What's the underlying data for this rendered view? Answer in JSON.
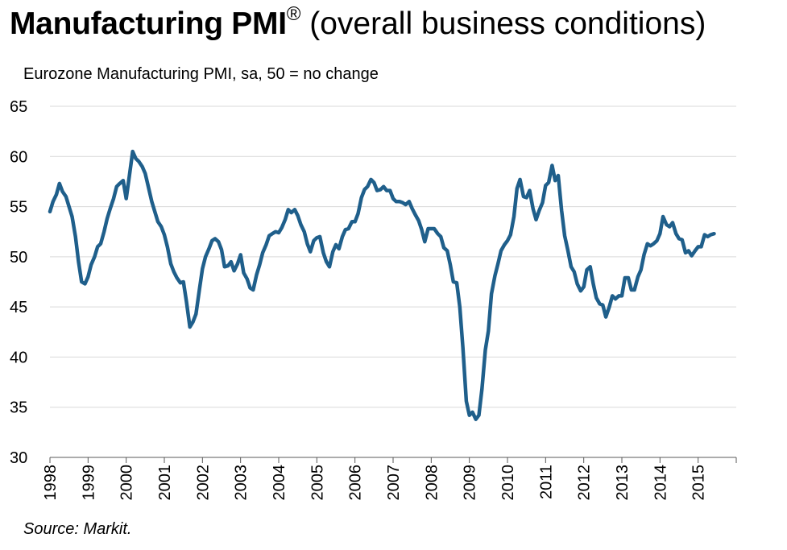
{
  "header": {
    "title_bold": "Manufacturing PMI",
    "title_mark": "®",
    "title_rest": " (overall business conditions)",
    "subtitle": "Eurozone Manufacturing PMI, sa, 50 = no change"
  },
  "footer": {
    "source": "Source: Markit."
  },
  "colors": {
    "series": "#1f5f8b",
    "grid": "#d9d9d9",
    "axis": "#595959"
  },
  "chart_data": {
    "type": "line",
    "title": "Manufacturing PMI® (overall business conditions)",
    "subtitle": "Eurozone Manufacturing PMI, sa, 50 = no change",
    "xlabel": "",
    "ylabel": "",
    "ylim": [
      30,
      65
    ],
    "yticks": [
      30,
      35,
      40,
      45,
      50,
      55,
      60,
      65
    ],
    "xlim": [
      1998,
      2016.0
    ],
    "xticks": [
      "1998",
      "1999",
      "2000",
      "2001",
      "2002",
      "2003",
      "2004",
      "2005",
      "2006",
      "2007",
      "2008",
      "2009",
      "2010",
      "2011",
      "2012",
      "2013",
      "2014",
      "2015"
    ],
    "grid": "horizontal",
    "legend": "none",
    "series": [
      {
        "x": [
          1998.0,
          1998.08,
          1998.17,
          1998.25,
          1998.33,
          1998.42,
          1998.5,
          1998.58,
          1998.67,
          1998.75,
          1998.83,
          1998.92,
          1999.0,
          1999.08,
          1999.17,
          1999.25,
          1999.33,
          1999.42,
          1999.5,
          1999.58,
          1999.67,
          1999.75,
          1999.83,
          1999.92,
          2000.0,
          2000.08,
          2000.17,
          2000.25,
          2000.33,
          2000.42,
          2000.5,
          2000.58,
          2000.67,
          2000.75,
          2000.83,
          2000.92,
          2001.0,
          2001.08,
          2001.17,
          2001.25,
          2001.33,
          2001.42,
          2001.5,
          2001.58,
          2001.67,
          2001.75,
          2001.83,
          2001.92,
          2002.0,
          2002.08,
          2002.17,
          2002.25,
          2002.33,
          2002.42,
          2002.5,
          2002.58,
          2002.67,
          2002.75,
          2002.83,
          2002.92,
          2003.0,
          2003.08,
          2003.17,
          2003.25,
          2003.33,
          2003.42,
          2003.5,
          2003.58,
          2003.67,
          2003.75,
          2003.83,
          2003.92,
          2004.0,
          2004.08,
          2004.17,
          2004.25,
          2004.33,
          2004.42,
          2004.5,
          2004.58,
          2004.67,
          2004.75,
          2004.83,
          2004.92,
          2005.0,
          2005.08,
          2005.17,
          2005.25,
          2005.33,
          2005.42,
          2005.5,
          2005.58,
          2005.67,
          2005.75,
          2005.83,
          2005.92,
          2006.0,
          2006.08,
          2006.17,
          2006.25,
          2006.33,
          2006.42,
          2006.5,
          2006.58,
          2006.67,
          2006.75,
          2006.83,
          2006.92,
          2007.0,
          2007.08,
          2007.17,
          2007.25,
          2007.33,
          2007.42,
          2007.5,
          2007.58,
          2007.67,
          2007.75,
          2007.83,
          2007.92,
          2008.0,
          2008.08,
          2008.17,
          2008.25,
          2008.33,
          2008.42,
          2008.5,
          2008.58,
          2008.67,
          2008.75,
          2008.83,
          2008.92,
          2009.0,
          2009.08,
          2009.17,
          2009.25,
          2009.33,
          2009.42,
          2009.5,
          2009.58,
          2009.67,
          2009.75,
          2009.83,
          2009.92,
          2010.0,
          2010.08,
          2010.17,
          2010.25,
          2010.33,
          2010.42,
          2010.5,
          2010.58,
          2010.67,
          2010.75,
          2010.83,
          2010.92,
          2011.0,
          2011.08,
          2011.17,
          2011.25,
          2011.33,
          2011.42,
          2011.5,
          2011.58,
          2011.67,
          2011.75,
          2011.83,
          2011.92,
          2012.0,
          2012.08,
          2012.17,
          2012.25,
          2012.33,
          2012.42,
          2012.5,
          2012.58,
          2012.67,
          2012.75,
          2012.83,
          2012.92,
          2013.0,
          2013.08,
          2013.17,
          2013.25,
          2013.33,
          2013.42,
          2013.5,
          2013.58,
          2013.67,
          2013.75,
          2013.83,
          2013.92,
          2014.0,
          2014.08,
          2014.17,
          2014.25,
          2014.33,
          2014.42,
          2014.5,
          2014.58,
          2014.67,
          2014.75,
          2014.83,
          2014.92,
          2015.0,
          2015.08,
          2015.17,
          2015.25,
          2015.33,
          2015.42
        ],
        "y": [
          54.5,
          55.5,
          56.2,
          57.3,
          56.5,
          56.0,
          55.0,
          54.0,
          52.0,
          49.5,
          47.5,
          47.3,
          48.0,
          49.2,
          50.0,
          51.0,
          51.3,
          52.5,
          53.8,
          54.8,
          55.8,
          57.0,
          57.3,
          57.6,
          55.8,
          58.0,
          60.5,
          59.8,
          59.5,
          59.0,
          58.3,
          57.0,
          55.5,
          54.5,
          53.5,
          53.0,
          52.2,
          51.0,
          49.3,
          48.5,
          47.9,
          47.4,
          47.5,
          45.5,
          43.0,
          43.5,
          44.3,
          46.7,
          48.8,
          50.0,
          50.8,
          51.6,
          51.8,
          51.5,
          50.7,
          49.0,
          49.1,
          49.5,
          48.6,
          49.3,
          50.2,
          48.4,
          47.8,
          46.9,
          46.7,
          48.2,
          49.2,
          50.4,
          51.2,
          52.1,
          52.3,
          52.5,
          52.4,
          52.9,
          53.7,
          54.7,
          54.4,
          54.7,
          54.1,
          53.2,
          52.5,
          51.3,
          50.5,
          51.6,
          51.9,
          52.0,
          50.4,
          49.5,
          49.0,
          50.5,
          51.2,
          50.8,
          52.0,
          52.7,
          52.8,
          53.5,
          53.5,
          54.3,
          55.9,
          56.7,
          57.0,
          57.7,
          57.4,
          56.6,
          56.7,
          57.0,
          56.6,
          56.6,
          55.8,
          55.5,
          55.5,
          55.4,
          55.2,
          55.5,
          54.8,
          54.2,
          53.6,
          52.7,
          51.5,
          52.8,
          52.8,
          52.8,
          52.3,
          52.0,
          50.9,
          50.6,
          49.2,
          47.5,
          47.4,
          45.0,
          41.0,
          35.6,
          34.2,
          34.5,
          33.8,
          34.2,
          36.8,
          40.7,
          42.6,
          46.3,
          48.1,
          49.3,
          50.6,
          51.2,
          51.6,
          52.2,
          54.0,
          56.8,
          57.7,
          56.0,
          55.9,
          56.6,
          54.8,
          53.7,
          54.6,
          55.4,
          57.1,
          57.4,
          59.1,
          57.6,
          58.1,
          54.6,
          52.1,
          50.7,
          49.0,
          48.5,
          47.3,
          46.6,
          47.0,
          48.7,
          49.0,
          47.3,
          45.9,
          45.3,
          45.2,
          44.0,
          45.0,
          46.1,
          45.8,
          46.1,
          46.1,
          47.9,
          47.9,
          46.7,
          46.7,
          48.0,
          48.7,
          50.2,
          51.3,
          51.1,
          51.3,
          51.6,
          52.3,
          54.0,
          53.2,
          53.0,
          53.4,
          52.3,
          51.8,
          51.7,
          50.4,
          50.6,
          50.1,
          50.6,
          51.0,
          51.0,
          52.2,
          52.0,
          52.2,
          52.3
        ]
      }
    ]
  }
}
